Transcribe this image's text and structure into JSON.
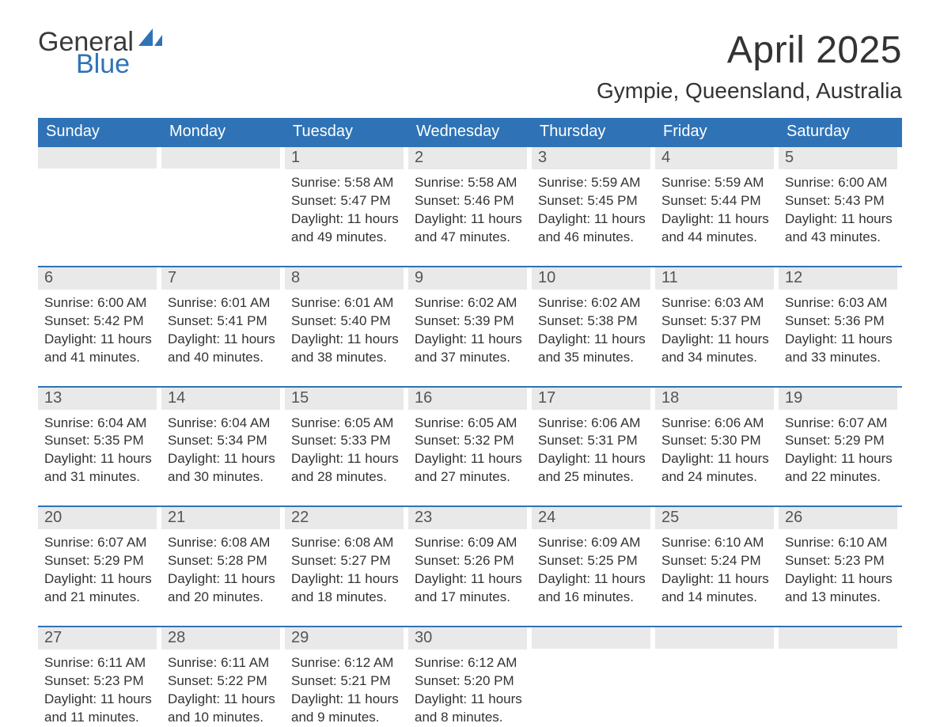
{
  "logo": {
    "word1": "General",
    "word2": "Blue",
    "sail_color": "#2f73b6",
    "text_color": "#3a3a3a"
  },
  "title": "April 2025",
  "location": "Gympie, Queensland, Australia",
  "colors": {
    "header_bg": "#2f73b6",
    "header_text": "#ffffff",
    "daynum_bg": "#e9e9e9",
    "body_text": "#333333",
    "rule": "#2f73b6"
  },
  "dow": [
    "Sunday",
    "Monday",
    "Tuesday",
    "Wednesday",
    "Thursday",
    "Friday",
    "Saturday"
  ],
  "weeks": [
    [
      {
        "n": "",
        "sr": "",
        "ss": "",
        "dlA": "",
        "dlB": ""
      },
      {
        "n": "",
        "sr": "",
        "ss": "",
        "dlA": "",
        "dlB": ""
      },
      {
        "n": "1",
        "sr": "Sunrise: 5:58 AM",
        "ss": "Sunset: 5:47 PM",
        "dlA": "Daylight: 11 hours",
        "dlB": "and 49 minutes."
      },
      {
        "n": "2",
        "sr": "Sunrise: 5:58 AM",
        "ss": "Sunset: 5:46 PM",
        "dlA": "Daylight: 11 hours",
        "dlB": "and 47 minutes."
      },
      {
        "n": "3",
        "sr": "Sunrise: 5:59 AM",
        "ss": "Sunset: 5:45 PM",
        "dlA": "Daylight: 11 hours",
        "dlB": "and 46 minutes."
      },
      {
        "n": "4",
        "sr": "Sunrise: 5:59 AM",
        "ss": "Sunset: 5:44 PM",
        "dlA": "Daylight: 11 hours",
        "dlB": "and 44 minutes."
      },
      {
        "n": "5",
        "sr": "Sunrise: 6:00 AM",
        "ss": "Sunset: 5:43 PM",
        "dlA": "Daylight: 11 hours",
        "dlB": "and 43 minutes."
      }
    ],
    [
      {
        "n": "6",
        "sr": "Sunrise: 6:00 AM",
        "ss": "Sunset: 5:42 PM",
        "dlA": "Daylight: 11 hours",
        "dlB": "and 41 minutes."
      },
      {
        "n": "7",
        "sr": "Sunrise: 6:01 AM",
        "ss": "Sunset: 5:41 PM",
        "dlA": "Daylight: 11 hours",
        "dlB": "and 40 minutes."
      },
      {
        "n": "8",
        "sr": "Sunrise: 6:01 AM",
        "ss": "Sunset: 5:40 PM",
        "dlA": "Daylight: 11 hours",
        "dlB": "and 38 minutes."
      },
      {
        "n": "9",
        "sr": "Sunrise: 6:02 AM",
        "ss": "Sunset: 5:39 PM",
        "dlA": "Daylight: 11 hours",
        "dlB": "and 37 minutes."
      },
      {
        "n": "10",
        "sr": "Sunrise: 6:02 AM",
        "ss": "Sunset: 5:38 PM",
        "dlA": "Daylight: 11 hours",
        "dlB": "and 35 minutes."
      },
      {
        "n": "11",
        "sr": "Sunrise: 6:03 AM",
        "ss": "Sunset: 5:37 PM",
        "dlA": "Daylight: 11 hours",
        "dlB": "and 34 minutes."
      },
      {
        "n": "12",
        "sr": "Sunrise: 6:03 AM",
        "ss": "Sunset: 5:36 PM",
        "dlA": "Daylight: 11 hours",
        "dlB": "and 33 minutes."
      }
    ],
    [
      {
        "n": "13",
        "sr": "Sunrise: 6:04 AM",
        "ss": "Sunset: 5:35 PM",
        "dlA": "Daylight: 11 hours",
        "dlB": "and 31 minutes."
      },
      {
        "n": "14",
        "sr": "Sunrise: 6:04 AM",
        "ss": "Sunset: 5:34 PM",
        "dlA": "Daylight: 11 hours",
        "dlB": "and 30 minutes."
      },
      {
        "n": "15",
        "sr": "Sunrise: 6:05 AM",
        "ss": "Sunset: 5:33 PM",
        "dlA": "Daylight: 11 hours",
        "dlB": "and 28 minutes."
      },
      {
        "n": "16",
        "sr": "Sunrise: 6:05 AM",
        "ss": "Sunset: 5:32 PM",
        "dlA": "Daylight: 11 hours",
        "dlB": "and 27 minutes."
      },
      {
        "n": "17",
        "sr": "Sunrise: 6:06 AM",
        "ss": "Sunset: 5:31 PM",
        "dlA": "Daylight: 11 hours",
        "dlB": "and 25 minutes."
      },
      {
        "n": "18",
        "sr": "Sunrise: 6:06 AM",
        "ss": "Sunset: 5:30 PM",
        "dlA": "Daylight: 11 hours",
        "dlB": "and 24 minutes."
      },
      {
        "n": "19",
        "sr": "Sunrise: 6:07 AM",
        "ss": "Sunset: 5:29 PM",
        "dlA": "Daylight: 11 hours",
        "dlB": "and 22 minutes."
      }
    ],
    [
      {
        "n": "20",
        "sr": "Sunrise: 6:07 AM",
        "ss": "Sunset: 5:29 PM",
        "dlA": "Daylight: 11 hours",
        "dlB": "and 21 minutes."
      },
      {
        "n": "21",
        "sr": "Sunrise: 6:08 AM",
        "ss": "Sunset: 5:28 PM",
        "dlA": "Daylight: 11 hours",
        "dlB": "and 20 minutes."
      },
      {
        "n": "22",
        "sr": "Sunrise: 6:08 AM",
        "ss": "Sunset: 5:27 PM",
        "dlA": "Daylight: 11 hours",
        "dlB": "and 18 minutes."
      },
      {
        "n": "23",
        "sr": "Sunrise: 6:09 AM",
        "ss": "Sunset: 5:26 PM",
        "dlA": "Daylight: 11 hours",
        "dlB": "and 17 minutes."
      },
      {
        "n": "24",
        "sr": "Sunrise: 6:09 AM",
        "ss": "Sunset: 5:25 PM",
        "dlA": "Daylight: 11 hours",
        "dlB": "and 16 minutes."
      },
      {
        "n": "25",
        "sr": "Sunrise: 6:10 AM",
        "ss": "Sunset: 5:24 PM",
        "dlA": "Daylight: 11 hours",
        "dlB": "and 14 minutes."
      },
      {
        "n": "26",
        "sr": "Sunrise: 6:10 AM",
        "ss": "Sunset: 5:23 PM",
        "dlA": "Daylight: 11 hours",
        "dlB": "and 13 minutes."
      }
    ],
    [
      {
        "n": "27",
        "sr": "Sunrise: 6:11 AM",
        "ss": "Sunset: 5:23 PM",
        "dlA": "Daylight: 11 hours",
        "dlB": "and 11 minutes."
      },
      {
        "n": "28",
        "sr": "Sunrise: 6:11 AM",
        "ss": "Sunset: 5:22 PM",
        "dlA": "Daylight: 11 hours",
        "dlB": "and 10 minutes."
      },
      {
        "n": "29",
        "sr": "Sunrise: 6:12 AM",
        "ss": "Sunset: 5:21 PM",
        "dlA": "Daylight: 11 hours",
        "dlB": "and 9 minutes."
      },
      {
        "n": "30",
        "sr": "Sunrise: 6:12 AM",
        "ss": "Sunset: 5:20 PM",
        "dlA": "Daylight: 11 hours",
        "dlB": "and 8 minutes."
      },
      {
        "n": "",
        "sr": "",
        "ss": "",
        "dlA": "",
        "dlB": ""
      },
      {
        "n": "",
        "sr": "",
        "ss": "",
        "dlA": "",
        "dlB": ""
      },
      {
        "n": "",
        "sr": "",
        "ss": "",
        "dlA": "",
        "dlB": ""
      }
    ]
  ]
}
